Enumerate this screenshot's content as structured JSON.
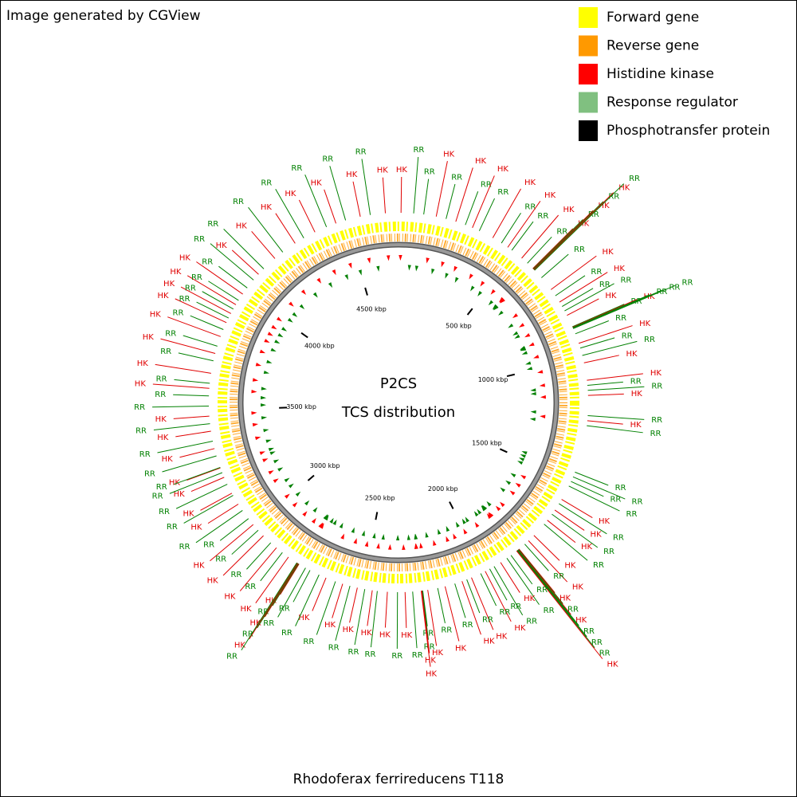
{
  "chart_data": {
    "type": "circular-genome-map",
    "credit": "Image generated by CGView",
    "title": "P2CS",
    "subtitle": "TCS distribution",
    "caption": "Rhodoferax ferrireducens T118",
    "xlim": [
      0,
      4712
    ],
    "xticks": [
      {
        "value": 500,
        "label": "500 kbp"
      },
      {
        "value": 1000,
        "label": "1000 kbp"
      },
      {
        "value": 1500,
        "label": "1500 kbp"
      },
      {
        "value": 2000,
        "label": "2000 kbp"
      },
      {
        "value": 2500,
        "label": "2500 kbp"
      },
      {
        "value": 3000,
        "label": "3000 kbp"
      },
      {
        "value": 3500,
        "label": "3500 kbp"
      },
      {
        "value": 4000,
        "label": "4000 kbp"
      },
      {
        "value": 4500,
        "label": "4500 kbp"
      }
    ],
    "legend": [
      {
        "name": "Forward gene",
        "color": "#ffff00"
      },
      {
        "name": "Reverse gene",
        "color": "#ff9900"
      },
      {
        "name": "Histidine kinase",
        "color": "#ff0000"
      },
      {
        "name": "Response regulator",
        "color": "#80c080"
      },
      {
        "name": "Phosphotransfer protein",
        "color": "#000000"
      }
    ],
    "label_colors": {
      "HK": "#e00000",
      "RR": "#008000"
    },
    "features": {
      "labels": [
        "HK",
        "RR",
        "RR",
        "HK",
        "RR",
        "HK",
        "RR",
        "HK",
        "RR",
        "HK",
        "RR",
        "HK",
        "RR",
        "HK",
        "RR",
        "HK",
        "RR",
        "HK",
        "RR",
        "HK",
        "RR",
        "RR",
        "HK",
        "RR",
        "HK",
        "RR",
        "RR",
        "HK",
        "RR",
        "HK",
        "RR",
        "RR",
        "RR",
        "RR",
        "HK",
        "RR",
        "RR",
        "HK",
        "HK",
        "RR",
        "RR",
        "HK",
        "RR",
        "HK",
        "RR",
        "RR",
        "RR",
        "RR",
        "RR",
        "HK",
        "RR",
        "HK",
        "RR",
        "HK",
        "RR",
        "HK",
        "HK",
        "RR",
        "HK",
        "RR",
        "HK",
        "RR",
        "RR",
        "RR",
        "HK",
        "RR",
        "RR",
        "HK",
        "RR",
        "RR",
        "HK",
        "RR",
        "HK",
        "RR",
        "HK",
        "RR",
        "HK",
        "RR",
        "HK",
        "RR",
        "RR",
        "HK",
        "HK",
        "RR",
        "HK",
        "RR",
        "HK",
        "RR",
        "HK",
        "RR",
        "HK",
        "RR",
        "HK",
        "RR",
        "HK",
        "RR",
        "RR",
        "RR",
        "HK",
        "RR",
        "HK",
        "RR",
        "HK",
        "RR",
        "HK",
        "RR",
        "HK",
        "RR",
        "HK",
        "RR",
        "HK",
        "RR",
        "RR",
        "HK",
        "RR",
        "HK",
        "RR",
        "HK",
        "RR",
        "HK",
        "RR",
        "RR",
        "HK",
        "RR",
        "HK",
        "RR",
        "HK",
        "RR",
        "RR",
        "HK",
        "RR",
        "HK",
        "RR",
        "HK",
        "RR",
        "HK",
        "RR",
        "HK",
        "RR",
        "HK",
        "RR",
        "HK",
        "RR",
        "HK",
        "RR",
        "RR",
        "HK",
        "RR",
        "HK",
        "RR",
        "HK",
        "RR",
        "HK",
        "RR",
        "HK",
        "RR",
        "HK",
        "RR",
        "HK"
      ],
      "positions": [
        10,
        60,
        100,
        150,
        190,
        230,
        270,
        300,
        330,
        390,
        430,
        460,
        480,
        530,
        560,
        590,
        592,
        594,
        596,
        598,
        600,
        640,
        700,
        730,
        760,
        780,
        800,
        820,
        870,
        872,
        874,
        876,
        878,
        900,
        940,
        960,
        990,
        1020,
        1090,
        1110,
        1130,
        1150,
        1230,
        1250,
        1270,
        1460,
        1480,
        1500,
        1520,
        1580,
        1600,
        1630,
        1650,
        1680,
        1700,
        1760,
        1790,
        1810,
        1840,
        1842,
        1844,
        1846,
        1848,
        1850,
        1852,
        1880,
        1900,
        1930,
        1960,
        1980,
        2000,
        2020,
        2060,
        2080,
        2100,
        2130,
        2170,
        2200,
        2240,
        2260,
        2262,
        2264,
        2266,
        2300,
        2330,
        2360,
        2400,
        2440,
        2460,
        2490,
        2520,
        2550,
        2580,
        2610,
        2650,
        2680,
        2720,
        2740,
        2770,
        2772,
        2774,
        2776,
        2778,
        2780,
        2820,
        2850,
        2880,
        2910,
        2950,
        2980,
        3010,
        3040,
        3080,
        3110,
        3150,
        3160,
        3200,
        3230,
        3250,
        3270,
        3272,
        3320,
        3350,
        3380,
        3420,
        3450,
        3480,
        3520,
        3560,
        3590,
        3610,
        3650,
        3700,
        3730,
        3760,
        3800,
        3830,
        3860,
        3880,
        3900,
        3920,
        3940,
        3960,
        3990,
        4020,
        4060,
        4090,
        4120,
        4180,
        4220,
        4280,
        4320,
        4370,
        4420,
        4460,
        4500,
        4560,
        4600,
        4660
      ]
    }
  }
}
